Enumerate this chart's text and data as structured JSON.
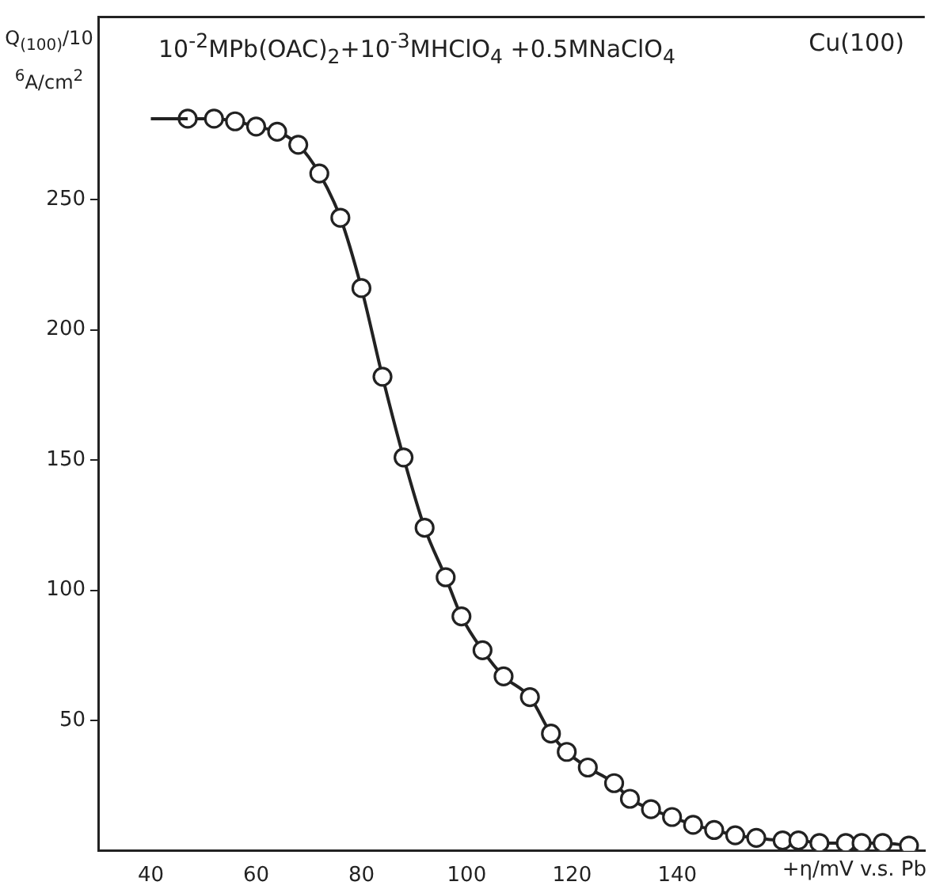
{
  "chart_data": {
    "type": "line",
    "title": "10$^{-2}$MPb(OAC)$_{2}$+10$^{-3}$MHClO$_{4}$ +0.5MNaClO$_{4}$",
    "annotations": [
      "Cu(100)"
    ],
    "ylabel": "Q$_{(100)}$/10$^{6}$A/cm$^{2}$",
    "xlabel": "+η/mV v.s. Pb",
    "xlim": [
      30,
      187
    ],
    "ylim": [
      0,
      320
    ],
    "xticks": [
      40,
      60,
      80,
      100,
      120,
      140
    ],
    "yticks": [
      50,
      100,
      150,
      200,
      250
    ],
    "grid": false,
    "legend": false,
    "series": [
      {
        "color": "#222222",
        "x": [
          40,
          47
        ],
        "values": [
          281,
          281
        ]
      },
      {
        "marker": "circle",
        "color": "#222222",
        "x": [
          47,
          52,
          56,
          60,
          64,
          68,
          72,
          76,
          80,
          84,
          88,
          92,
          96,
          99,
          103,
          107,
          112,
          116,
          119,
          123,
          128,
          131,
          135,
          139,
          143,
          147,
          151,
          155,
          160,
          163,
          167,
          172,
          175,
          179,
          184
        ],
        "values": [
          281,
          281,
          280,
          278,
          276,
          271,
          260,
          243,
          216,
          182,
          151,
          124,
          105,
          90,
          77,
          67,
          59,
          45,
          38,
          32,
          26,
          20,
          16,
          13,
          10,
          8,
          6,
          5,
          4,
          4,
          3,
          3,
          3,
          3,
          2
        ]
      }
    ]
  }
}
